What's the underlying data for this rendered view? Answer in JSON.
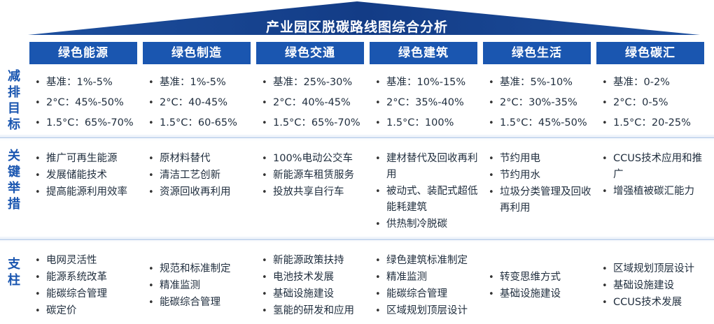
{
  "title": "产业园区脱碳路线图综合分析",
  "colors": {
    "primary": "#1a56b0",
    "header_text": "#ffffff",
    "divider": "#c9d9ef"
  },
  "columns": [
    "绿色能源",
    "绿色制造",
    "绿色交通",
    "绿色建筑",
    "绿色生活",
    "绿色碳汇"
  ],
  "row_labels": {
    "targets": "减排目标",
    "measures": "关键举措",
    "pillars": "支柱"
  },
  "targets": [
    [
      "基准：1%-5%",
      "2°C：45%-50%",
      "1.5°C：65%-70%"
    ],
    [
      "基准：1%-5%",
      "2°C：40-45%",
      "1.5°C：60-65%"
    ],
    [
      "基准：25%-30%",
      "2°C：40%-45%",
      "1.5°C：65%-70%"
    ],
    [
      "基准：10%-15%",
      "2°C：35%-40%",
      "1.5°C：100%"
    ],
    [
      "基准：5%-10%",
      "2°C：30%-35%",
      "1.5°C：45%-50%"
    ],
    [
      "基准：0-2%",
      "2°C：0-5%",
      "1.5°C：20-25%"
    ]
  ],
  "measures": [
    [
      "推广可再生能源",
      "发展储能技术",
      "提高能源利用效率"
    ],
    [
      "原材料替代",
      "清洁工艺创新",
      "资源回收再利用"
    ],
    [
      "100%电动公交车",
      "新能源车租赁服务",
      "投放共享自行车"
    ],
    [
      "建材替代及回收再利用",
      "被动式、装配式超低能耗建筑",
      "供热制冷脱碳"
    ],
    [
      "节约用电",
      "节约用水",
      "垃圾分类管理及回收再利用"
    ],
    [
      "CCUS技术应用和推广",
      "增强植被碳汇能力"
    ]
  ],
  "pillars": [
    [
      "电网灵活性",
      "能源系统改革",
      "能碳综合管理",
      "碳定价"
    ],
    [
      "规范和标准制定",
      "精准监测",
      "能碳综合管理"
    ],
    [
      "新能源政策扶持",
      "电池技术发展",
      "基础设施建设",
      "氢能的研发和应用"
    ],
    [
      "绿色建筑标准制定",
      "精准监测",
      "能碳综合管理",
      "区域规划顶层设计"
    ],
    [
      "转变思维方式",
      "基础设施建设"
    ],
    [
      "区域规划顶层设计",
      "基础设施建设",
      "CCUS技术发展"
    ]
  ]
}
